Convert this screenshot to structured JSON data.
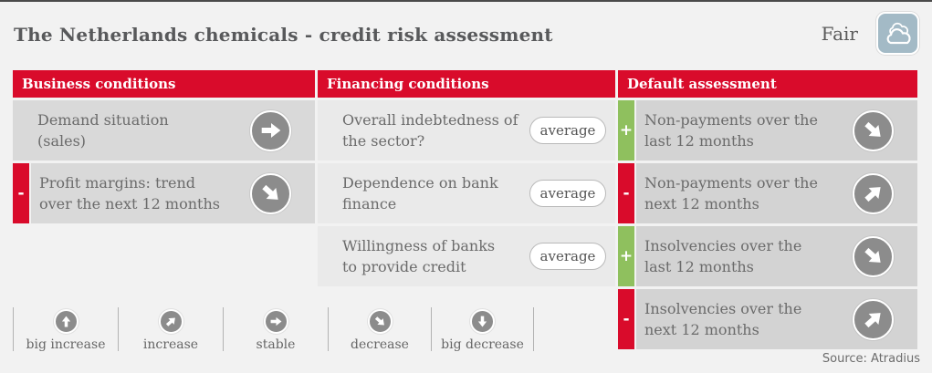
{
  "header": {
    "title": "The Netherlands chemicals - credit risk assessment",
    "rating": {
      "label": "Fair",
      "icon": "clouds-icon"
    }
  },
  "colors": {
    "accent_red": "#d90b2b",
    "positive_green": "#8fc05e",
    "rating_badge_blue": "#a3bac6",
    "indicator_gray": "#8c8c8c"
  },
  "columns": [
    {
      "header": "Business conditions",
      "rows": [
        {
          "label": "Demand situation\n(sales)",
          "tab": null,
          "indicator": "stable"
        },
        {
          "label": "Profit margins: trend\nover the next 12 months",
          "tab": "-",
          "indicator": "decrease"
        }
      ]
    },
    {
      "header": "Financing conditions",
      "rows": [
        {
          "label": "Overall indebtedness of\nthe sector?",
          "tab": null,
          "value": "average"
        },
        {
          "label": "Dependence on bank\nfinance",
          "tab": null,
          "value": "average"
        },
        {
          "label": "Willingness of banks\nto provide credit",
          "tab": null,
          "value": "average"
        }
      ]
    },
    {
      "header": "Default assessment",
      "rows": [
        {
          "label": "Non-payments over the\nlast 12 months",
          "tab": "+",
          "indicator": "decrease"
        },
        {
          "label": "Non-payments over the\nnext 12 months",
          "tab": "-",
          "indicator": "increase"
        },
        {
          "label": "Insolvencies over the\nlast 12 months",
          "tab": "+",
          "indicator": "decrease"
        },
        {
          "label": "Insolvencies over the\nnext 12 months",
          "tab": "-",
          "indicator": "increase"
        }
      ]
    }
  ],
  "legend": [
    {
      "label": "big increase",
      "indicator": "big-increase"
    },
    {
      "label": "increase",
      "indicator": "increase"
    },
    {
      "label": "stable",
      "indicator": "stable"
    },
    {
      "label": "decrease",
      "indicator": "decrease"
    },
    {
      "label": "big decrease",
      "indicator": "big-decrease"
    }
  ],
  "footer": {
    "source": "Source: Atradius"
  }
}
